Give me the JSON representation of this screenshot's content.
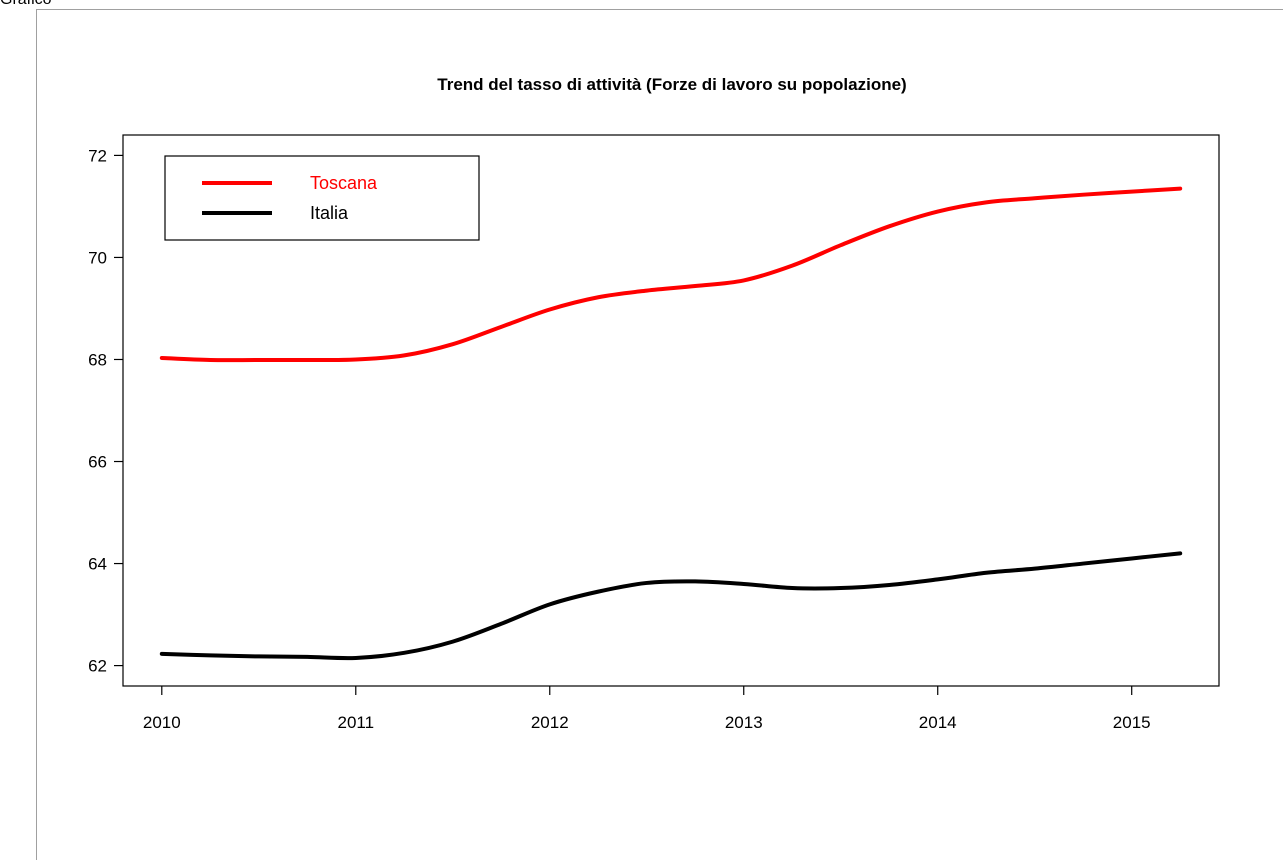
{
  "window": {
    "tab_label": "Grafico"
  },
  "chart_data": {
    "type": "line",
    "title": "Trend del tasso di attività (Forze di lavoro su popolazione)",
    "xlabel": "",
    "ylabel": "",
    "xlim": [
      2009.8,
      2015.45
    ],
    "ylim": [
      61.6,
      72.4
    ],
    "x_ticks": [
      2010,
      2011,
      2012,
      2013,
      2014,
      2015
    ],
    "y_ticks": [
      62,
      64,
      66,
      68,
      70,
      72
    ],
    "grid": false,
    "legend_position": "top-left",
    "series": [
      {
        "name": "Toscana",
        "color": "#ff0000",
        "points": [
          [
            2010.0,
            68.03
          ],
          [
            2010.25,
            67.99
          ],
          [
            2010.5,
            67.99
          ],
          [
            2010.75,
            67.99
          ],
          [
            2011.0,
            68.0
          ],
          [
            2011.25,
            68.08
          ],
          [
            2011.5,
            68.3
          ],
          [
            2011.75,
            68.64
          ],
          [
            2012.0,
            68.98
          ],
          [
            2012.25,
            69.22
          ],
          [
            2012.5,
            69.35
          ],
          [
            2012.75,
            69.44
          ],
          [
            2013.0,
            69.55
          ],
          [
            2013.25,
            69.84
          ],
          [
            2013.5,
            70.24
          ],
          [
            2013.75,
            70.61
          ],
          [
            2014.0,
            70.9
          ],
          [
            2014.25,
            71.08
          ],
          [
            2014.5,
            71.16
          ],
          [
            2014.75,
            71.23
          ],
          [
            2015.0,
            71.29
          ],
          [
            2015.25,
            71.35
          ]
        ]
      },
      {
        "name": "Italia",
        "color": "#000000",
        "points": [
          [
            2010.0,
            62.23
          ],
          [
            2010.25,
            62.2
          ],
          [
            2010.5,
            62.18
          ],
          [
            2010.75,
            62.17
          ],
          [
            2011.0,
            62.15
          ],
          [
            2011.25,
            62.25
          ],
          [
            2011.5,
            62.47
          ],
          [
            2011.75,
            62.82
          ],
          [
            2012.0,
            63.2
          ],
          [
            2012.25,
            63.45
          ],
          [
            2012.5,
            63.62
          ],
          [
            2012.75,
            63.65
          ],
          [
            2013.0,
            63.6
          ],
          [
            2013.25,
            63.52
          ],
          [
            2013.5,
            63.52
          ],
          [
            2013.75,
            63.58
          ],
          [
            2014.0,
            63.69
          ],
          [
            2014.25,
            63.82
          ],
          [
            2014.5,
            63.9
          ],
          [
            2014.75,
            64.0
          ],
          [
            2015.0,
            64.1
          ],
          [
            2015.25,
            64.2
          ]
        ]
      }
    ]
  }
}
